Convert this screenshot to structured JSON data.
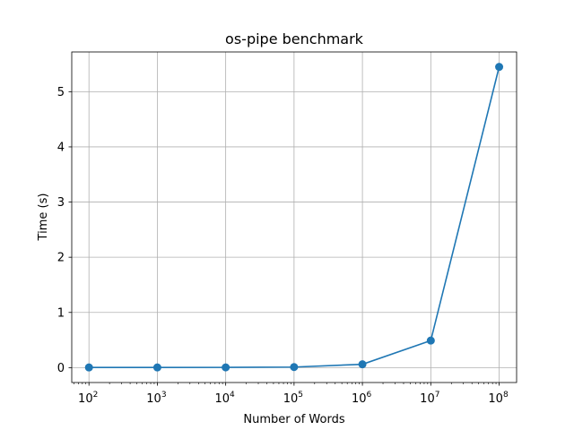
{
  "chart_data": {
    "type": "line",
    "title": "os-pipe benchmark",
    "xlabel": "Number of Words",
    "ylabel": "Time (s)",
    "xscale": "log",
    "xlim": [
      56,
      180000000
    ],
    "ylim": [
      -0.27,
      5.72
    ],
    "grid": true,
    "x_ticks": [
      {
        "base": "10",
        "exp": "2",
        "value": 100
      },
      {
        "base": "10",
        "exp": "3",
        "value": 1000
      },
      {
        "base": "10",
        "exp": "4",
        "value": 10000
      },
      {
        "base": "10",
        "exp": "5",
        "value": 100000
      },
      {
        "base": "10",
        "exp": "6",
        "value": 1000000
      },
      {
        "base": "10",
        "exp": "7",
        "value": 10000000
      },
      {
        "base": "10",
        "exp": "8",
        "value": 100000000
      }
    ],
    "y_ticks": [
      "0",
      "1",
      "2",
      "3",
      "4",
      "5"
    ],
    "series": [
      {
        "color": "#1f77b4",
        "x": [
          100,
          1000,
          10000,
          100000,
          1000000,
          10000000,
          100000000
        ],
        "y": [
          0.003,
          0.003,
          0.004,
          0.01,
          0.06,
          0.49,
          5.45
        ]
      }
    ]
  }
}
